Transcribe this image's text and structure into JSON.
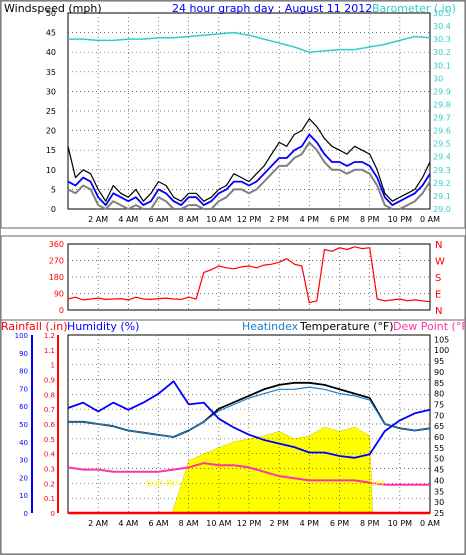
{
  "colors": {
    "wind": "#000000",
    "wind_avg": "#0000ff",
    "wind_gust_shadow": "#808080",
    "barometer": "#33cccc",
    "title": "#0000ff",
    "direction": "#ff0000",
    "rain": "#ff0000",
    "humidity": "#0000ff",
    "heatindex": "#1e7ec8",
    "temperature": "#000000",
    "dewpoint": "#ff33aa",
    "solar": "#ffff00",
    "sun_label": "#ffff00"
  },
  "header": {
    "windspeed_label": "Windspeed (mph)",
    "title": "24 hour graph day : August 11 2012",
    "barometer_label": "Barometer (.in)"
  },
  "bottom_header": {
    "rainfall_label": "Rainfall (.in)",
    "humidity_label": "Humidity (%)",
    "heatindex_label": "Heatindex",
    "temperature_label": "Temperature (°F)",
    "dewpoint_label": "Dew Point (°F)"
  },
  "annotations": {
    "sunrise": "Sun Ris",
    "sunset": "Set"
  },
  "chart_data": [
    {
      "type": "line",
      "panel": "wind-barometer",
      "x_ticks": [
        "2 AM",
        "4 AM",
        "6 AM",
        "8 AM",
        "10 AM",
        "12 PM",
        "2 PM",
        "4 PM",
        "6 PM",
        "8 PM",
        "10 PM",
        "0 AM"
      ],
      "y_left_ticks": [
        "0",
        "5",
        "10",
        "15",
        "20",
        "25",
        "30",
        "35",
        "40",
        "45",
        "50"
      ],
      "y_left_range": [
        0,
        50
      ],
      "y_right_ticks": [
        "29.0",
        "29.1",
        "29.2",
        "29.3",
        "29.4",
        "29.5",
        "29.6",
        "29.7",
        "29.8",
        "29.9",
        "30",
        "30.1",
        "30.2",
        "30.3",
        "30.4",
        "30.5"
      ],
      "y_right_range": [
        29.0,
        30.5
      ],
      "series": [
        {
          "name": "Windspeed",
          "x": [
            0,
            0.5,
            1,
            1.5,
            2,
            2.5,
            3,
            3.5,
            4,
            4.5,
            5,
            5.5,
            6,
            6.5,
            7,
            7.5,
            8,
            8.5,
            9,
            9.5,
            10,
            10.5,
            11,
            11.5,
            12,
            12.5,
            13,
            13.5,
            14,
            14.5,
            15,
            15.5,
            16,
            16.5,
            17,
            17.5,
            18,
            18.5,
            19,
            19.5,
            20,
            20.5,
            21,
            21.5,
            22,
            22.5,
            23,
            23.5,
            24
          ],
          "values": [
            16,
            8,
            10,
            9,
            5,
            2,
            6,
            4,
            3,
            5,
            2,
            4,
            7,
            6,
            3,
            2,
            4,
            4,
            2,
            3,
            5,
            6,
            9,
            8,
            7,
            9,
            11,
            14,
            17,
            16,
            19,
            20,
            23,
            21,
            18,
            16,
            15,
            14,
            16,
            15,
            14,
            10,
            4,
            2,
            3,
            4,
            5,
            8,
            12
          ]
        },
        {
          "name": "Wind Average",
          "x": [
            0,
            0.5,
            1,
            1.5,
            2,
            2.5,
            3,
            3.5,
            4,
            4.5,
            5,
            5.5,
            6,
            6.5,
            7,
            7.5,
            8,
            8.5,
            9,
            9.5,
            10,
            10.5,
            11,
            11.5,
            12,
            12.5,
            13,
            13.5,
            14,
            14.5,
            15,
            15.5,
            16,
            16.5,
            17,
            17.5,
            18,
            18.5,
            19,
            19.5,
            20,
            20.5,
            21,
            21.5,
            22,
            22.5,
            23,
            23.5,
            24
          ],
          "values": [
            7,
            6,
            8,
            7,
            3,
            1,
            4,
            3,
            2,
            3,
            1,
            2,
            5,
            4,
            2,
            1,
            3,
            3,
            1,
            2,
            4,
            5,
            7,
            7,
            6,
            7,
            9,
            11,
            13,
            13,
            15,
            16,
            19,
            17,
            14,
            12,
            12,
            11,
            12,
            12,
            11,
            8,
            3,
            1,
            2,
            3,
            4,
            6,
            9
          ]
        },
        {
          "name": "Barometer",
          "x": [
            0,
            1,
            2,
            3,
            4,
            5,
            6,
            7,
            8,
            9,
            10,
            11,
            12,
            13,
            14,
            15,
            16,
            17,
            18,
            19,
            20,
            21,
            22,
            23,
            24
          ],
          "values": [
            30.3,
            30.3,
            30.29,
            30.29,
            30.3,
            30.3,
            30.31,
            30.31,
            30.32,
            30.33,
            30.34,
            30.35,
            30.33,
            30.3,
            30.27,
            30.24,
            30.2,
            30.21,
            30.22,
            30.22,
            30.24,
            30.26,
            30.29,
            30.32,
            30.31
          ]
        }
      ]
    },
    {
      "type": "scatter",
      "panel": "wind-direction",
      "x_ticks": [
        "2 AM",
        "4 AM",
        "6 AM",
        "8 AM",
        "10 AM",
        "12 PM",
        "2 PM",
        "4 PM",
        "6 PM",
        "8 PM",
        "10 PM",
        "0 AM"
      ],
      "y_left_ticks": [
        "0",
        "90",
        "180",
        "270",
        "360"
      ],
      "y_left_range": [
        0,
        360
      ],
      "y_right_ticks": [
        "N",
        "W",
        "S",
        "E",
        "N"
      ],
      "series": [
        {
          "name": "Wind Direction",
          "x": [
            0,
            0.5,
            1,
            1.5,
            2,
            2.5,
            3,
            3.5,
            4,
            4.5,
            5,
            5.5,
            6,
            6.5,
            7,
            7.5,
            8,
            8.5,
            9,
            9.5,
            10,
            10.5,
            11,
            11.5,
            12,
            12.5,
            13,
            13.5,
            14,
            14.5,
            15,
            15.5,
            16,
            16.5,
            17,
            17.5,
            18,
            18.5,
            19,
            19.5,
            20,
            20.5,
            21,
            21.5,
            22,
            22.5,
            23,
            23.5,
            24
          ],
          "values": [
            60,
            70,
            55,
            60,
            65,
            58,
            60,
            62,
            55,
            70,
            60,
            58,
            62,
            65,
            60,
            58,
            70,
            60,
            205,
            220,
            240,
            230,
            225,
            235,
            240,
            230,
            245,
            250,
            260,
            280,
            250,
            240,
            40,
            50,
            330,
            320,
            340,
            330,
            345,
            335,
            340,
            60,
            50,
            55,
            60,
            50,
            55,
            50,
            45
          ]
        }
      ]
    },
    {
      "type": "line",
      "panel": "temperature-humidity",
      "x_ticks": [
        "2 AM",
        "4 AM",
        "6 AM",
        "8 AM",
        "10 AM",
        "12 PM",
        "2 PM",
        "4 PM",
        "6 PM",
        "8 PM",
        "10 PM",
        "0 AM"
      ],
      "y_rain_ticks": [
        "0",
        "0.1",
        "0.2",
        "0.3",
        "0.4",
        "0.5",
        "0.6",
        "0.7",
        "0.8",
        "0.9",
        "1",
        "1.1",
        "1.2"
      ],
      "y_rain_range": [
        0,
        1.2
      ],
      "y_humidity_ticks": [
        "0",
        "10",
        "20",
        "30",
        "40",
        "50",
        "60",
        "70",
        "80",
        "90",
        "100"
      ],
      "y_humidity_range": [
        0,
        100
      ],
      "y_temp_ticks": [
        "25",
        "30",
        "35",
        "40",
        "45",
        "50",
        "55",
        "60",
        "65",
        "70",
        "75",
        "80",
        "85",
        "90",
        "95",
        "100",
        "105"
      ],
      "y_temp_range": [
        25,
        107
      ],
      "series": [
        {
          "name": "Temperature",
          "x": [
            0,
            1,
            2,
            3,
            4,
            5,
            6,
            7,
            8,
            9,
            10,
            11,
            12,
            13,
            14,
            15,
            16,
            17,
            18,
            19,
            20,
            21,
            22,
            23,
            24
          ],
          "values": [
            67,
            67,
            66,
            65,
            63,
            62,
            61,
            60,
            63,
            67,
            73,
            76,
            79,
            82,
            84,
            85,
            85,
            84,
            82,
            80,
            78,
            66,
            64,
            63,
            64
          ]
        },
        {
          "name": "Heatindex",
          "x": [
            0,
            1,
            2,
            3,
            4,
            5,
            6,
            7,
            8,
            9,
            10,
            11,
            12,
            13,
            14,
            15,
            16,
            17,
            18,
            19,
            20,
            21,
            22,
            23,
            24
          ],
          "values": [
            67,
            67,
            66,
            65,
            63,
            62,
            61,
            60,
            63,
            67,
            72,
            75,
            78,
            80,
            82,
            82,
            83,
            82,
            80,
            79,
            77,
            66,
            64,
            63,
            64
          ]
        },
        {
          "name": "Humidity",
          "x": [
            0,
            1,
            2,
            3,
            4,
            5,
            6,
            7,
            8,
            9,
            10,
            11,
            12,
            13,
            14,
            15,
            16,
            17,
            18,
            19,
            20,
            21,
            22,
            23,
            24
          ],
          "values": [
            59,
            62,
            57,
            62,
            58,
            62,
            67,
            74,
            61,
            62,
            53,
            48,
            44,
            41,
            39,
            37,
            34,
            34,
            32,
            31,
            33,
            46,
            52,
            56,
            58
          ]
        },
        {
          "name": "Dew Point",
          "x": [
            0,
            1,
            2,
            3,
            4,
            5,
            6,
            7,
            8,
            9,
            10,
            11,
            12,
            13,
            14,
            15,
            16,
            17,
            18,
            19,
            20,
            21,
            22,
            23,
            24
          ],
          "values": [
            46,
            45,
            45,
            44,
            44,
            44,
            44,
            45,
            46,
            48,
            47,
            47,
            46,
            44,
            42,
            41,
            40,
            40,
            40,
            40,
            39,
            38,
            38,
            38,
            38
          ]
        },
        {
          "name": "Solar",
          "x": [
            6.9,
            7,
            8,
            9,
            10,
            11,
            12,
            13,
            14,
            15,
            16,
            17,
            18,
            19,
            20,
            20.2
          ],
          "values": [
            0,
            0.03,
            0.35,
            0.4,
            0.44,
            0.48,
            0.5,
            0.52,
            0.55,
            0.5,
            0.52,
            0.58,
            0.55,
            0.58,
            0.52,
            0
          ]
        },
        {
          "name": "Rainfall",
          "x": [
            0,
            24
          ],
          "values": [
            0,
            0
          ]
        }
      ]
    }
  ]
}
